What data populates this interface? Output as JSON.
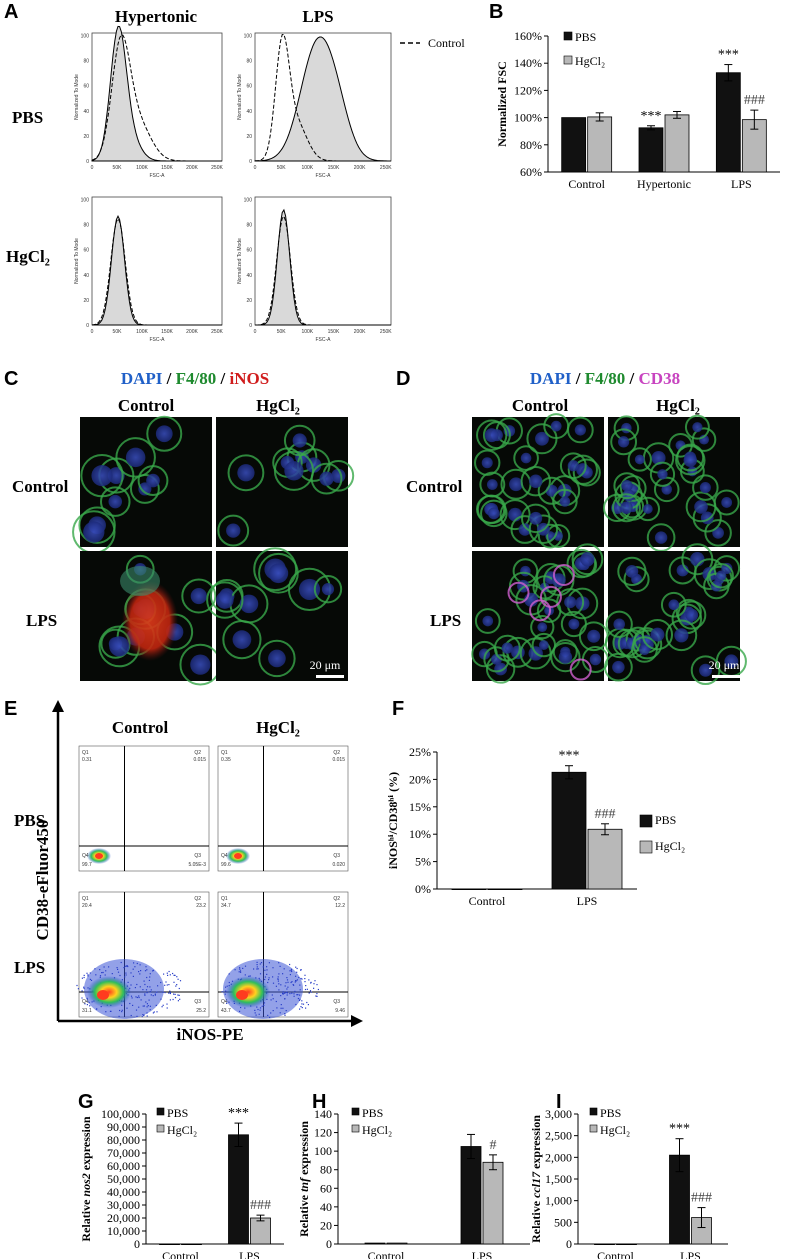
{
  "panels": {
    "A": {
      "label": "A",
      "col_headers": [
        "Hypertonic",
        "LPS"
      ],
      "row_labels": [
        "PBS",
        "HgCl₂"
      ],
      "legend": "Control",
      "axis_x_label": "FSC-A",
      "axis_y_label": "Normalized To Mode",
      "x_ticks": [
        "0",
        "50K",
        "100K",
        "150K",
        "200K",
        "250K"
      ],
      "y_ticks": [
        "0",
        "20",
        "40",
        "60",
        "80",
        "100"
      ]
    },
    "C": {
      "label": "C",
      "title": {
        "part1": "DAPI",
        "sep1": " / ",
        "part2": "F4/80",
        "sep2": " / ",
        "part3": "iNOS"
      },
      "col_headers": [
        "Control",
        "HgCl₂"
      ],
      "row_labels": [
        "Control",
        "LPS"
      ],
      "scale_bar": "20 μm"
    },
    "D": {
      "label": "D",
      "title": {
        "part1": "DAPI",
        "sep1": " / ",
        "part2": "F4/80",
        "sep2": " / ",
        "part3": "CD38"
      },
      "col_headers": [
        "Control",
        "HgCl₂"
      ],
      "row_labels": [
        "Control",
        "LPS"
      ],
      "scale_bar": "20 μm"
    },
    "E": {
      "label": "E",
      "col_headers": [
        "Control",
        "HgCl₂"
      ],
      "row_labels": [
        "PBS",
        "LPS"
      ],
      "y_axis_label": "CD38-eFluor450",
      "x_axis_label": "iNOS-PE",
      "quadrants": [
        {
          "Q1": "Q1",
          "Q1v": "0.31",
          "Q2": "Q2",
          "Q2v": "0.015",
          "Q3": "Q3",
          "Q3v": "5.05E-3",
          "Q4": "Q4",
          "Q4v": "99.7"
        },
        {
          "Q1": "Q1",
          "Q1v": "0.35",
          "Q2": "Q2",
          "Q2v": "0.015",
          "Q3": "Q3",
          "Q3v": "0.020",
          "Q4": "Q4",
          "Q4v": "99.6"
        },
        {
          "Q1": "Q1",
          "Q1v": "20.4",
          "Q2": "Q2",
          "Q2v": "23.2",
          "Q3": "Q3",
          "Q3v": "25.2",
          "Q4": "Q4",
          "Q4v": "31.1"
        },
        {
          "Q1": "Q1",
          "Q1v": "34.7",
          "Q2": "Q2",
          "Q2v": "12.2",
          "Q3": "Q3",
          "Q3v": "9.46",
          "Q4": "Q4",
          "Q4v": "43.7"
        }
      ]
    }
  },
  "chart_data": [
    {
      "id": "B",
      "type": "bar",
      "label": "B",
      "categories": [
        "Control",
        "Hypertonic",
        "LPS"
      ],
      "ylabel": "Normalized FSC",
      "ylim": [
        60,
        160
      ],
      "yticks": [
        "60%",
        "80%",
        "100%",
        "120%",
        "140%",
        "160%"
      ],
      "series": [
        {
          "name": "PBS",
          "color": "#111111",
          "values": [
            100,
            92.5,
            133
          ],
          "errors": [
            0,
            1.5,
            6
          ],
          "sig": [
            "",
            "***",
            "***"
          ]
        },
        {
          "name": "HgCl₂",
          "color": "#b8b8b8",
          "values": [
            100.5,
            102,
            98.5
          ],
          "errors": [
            3,
            2.5,
            7
          ],
          "sig": [
            "",
            "",
            "###"
          ]
        }
      ]
    },
    {
      "id": "F",
      "type": "bar",
      "label": "F",
      "categories": [
        "Control",
        "LPS"
      ],
      "ylabel": "iNOSʰⁱ/CD38ʰⁱ (%)",
      "ylim": [
        0,
        25
      ],
      "yticks": [
        "0%",
        "5%",
        "10%",
        "15%",
        "20%",
        "25%"
      ],
      "series": [
        {
          "name": "PBS",
          "color": "#111111",
          "values": [
            0,
            21.3
          ],
          "errors": [
            0,
            1.2
          ],
          "sig": [
            "",
            "***"
          ]
        },
        {
          "name": "HgCl₂",
          "color": "#b8b8b8",
          "values": [
            0,
            10.9
          ],
          "errors": [
            0,
            1
          ],
          "sig": [
            "",
            "###"
          ]
        }
      ]
    },
    {
      "id": "G",
      "type": "bar",
      "label": "G",
      "categories": [
        "Control",
        "LPS"
      ],
      "ylabel_prefix": "Relative ",
      "ylabel_gene": "nos2",
      "ylabel_suffix": " expression",
      "ylim": [
        0,
        100000
      ],
      "yticks": [
        "0",
        "10,000",
        "20,000",
        "30,000",
        "40,000",
        "50,000",
        "60,000",
        "70,000",
        "80,000",
        "90,000",
        "100,000"
      ],
      "series": [
        {
          "name": "PBS",
          "color": "#111111",
          "values": [
            0,
            84000
          ],
          "errors": [
            0,
            9000
          ],
          "sig": [
            "",
            "***"
          ]
        },
        {
          "name": "HgCl₂",
          "color": "#b8b8b8",
          "values": [
            0,
            20000
          ],
          "errors": [
            0,
            2200
          ],
          "sig": [
            "",
            "###"
          ]
        }
      ]
    },
    {
      "id": "H",
      "type": "bar",
      "label": "H",
      "categories": [
        "Control",
        "LPS"
      ],
      "ylabel_prefix": "Relative ",
      "ylabel_gene": "tnf",
      "ylabel_suffix": " expression",
      "ylim": [
        0,
        140
      ],
      "yticks": [
        "0",
        "20",
        "40",
        "60",
        "80",
        "100",
        "120",
        "140"
      ],
      "series": [
        {
          "name": "PBS",
          "color": "#111111",
          "values": [
            1,
            105
          ],
          "errors": [
            0,
            13
          ],
          "sig": [
            "",
            ""
          ]
        },
        {
          "name": "HgCl₂",
          "color": "#b8b8b8",
          "values": [
            1,
            88
          ],
          "errors": [
            0,
            8
          ],
          "sig": [
            "",
            "#"
          ]
        }
      ]
    },
    {
      "id": "I",
      "type": "bar",
      "label": "I",
      "categories": [
        "Control",
        "LPS"
      ],
      "ylabel_prefix": "Relative ",
      "ylabel_gene": "ccl17",
      "ylabel_suffix": " expression",
      "ylim": [
        0,
        3000
      ],
      "yticks": [
        "0",
        "500",
        "1,000",
        "1,500",
        "2,000",
        "2,500",
        "3,000"
      ],
      "series": [
        {
          "name": "PBS",
          "color": "#111111",
          "values": [
            0,
            2050
          ],
          "errors": [
            0,
            380
          ],
          "sig": [
            "",
            "***"
          ]
        },
        {
          "name": "HgCl₂",
          "color": "#b8b8b8",
          "values": [
            0,
            610
          ],
          "errors": [
            0,
            230
          ],
          "sig": [
            "",
            "###"
          ]
        }
      ]
    }
  ]
}
